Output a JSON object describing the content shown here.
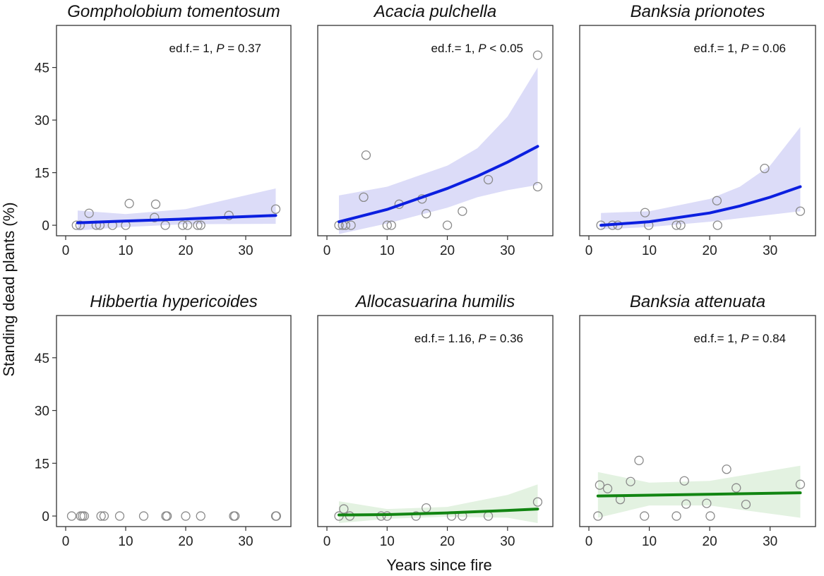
{
  "chart_data": {
    "type": "scatter",
    "ylabel": "Standing dead plants (%)",
    "xlabel": "Years since fire",
    "xlim": [
      0,
      36
    ],
    "ylim": [
      -3,
      57
    ],
    "xticks": [
      0,
      10,
      20,
      30
    ],
    "yticks": [
      0,
      15,
      30,
      45
    ],
    "colors": {
      "blue_fit": "#0b1fe0",
      "blue_ci": "#dcdcf8",
      "green_fit": "#128512",
      "green_ci": "#e3f2e1",
      "point": "#8a8a8a"
    },
    "panels": [
      {
        "title": "Gompholobium tomentosum",
        "stat": {
          "prefix": "ed.f.= 1, ",
          "p": "P",
          "suffix": " = 0.37"
        },
        "fit_color": "blue",
        "points": [
          [
            1.8,
            0
          ],
          [
            2.4,
            0
          ],
          [
            3.9,
            3.4
          ],
          [
            5.1,
            0
          ],
          [
            5.7,
            0
          ],
          [
            7.8,
            0
          ],
          [
            10,
            0
          ],
          [
            10.6,
            6.2
          ],
          [
            14.8,
            2.2
          ],
          [
            15,
            6
          ],
          [
            16.6,
            0
          ],
          [
            19.5,
            0
          ],
          [
            20.3,
            0
          ],
          [
            22,
            0
          ],
          [
            22.5,
            0
          ],
          [
            27.2,
            2.8
          ],
          [
            35,
            4.6
          ]
        ],
        "fit": [
          [
            2,
            0.7
          ],
          [
            10,
            1.2
          ],
          [
            20,
            1.8
          ],
          [
            35,
            2.8
          ]
        ],
        "ci_upper": [
          [
            2,
            4.2
          ],
          [
            10,
            3.2
          ],
          [
            20,
            4.6
          ],
          [
            35,
            10.5
          ]
        ],
        "ci_lower": [
          [
            2,
            -1.5
          ],
          [
            10,
            -0.5
          ],
          [
            20,
            0.3
          ],
          [
            35,
            0.4
          ]
        ]
      },
      {
        "title": "Acacia pulchella",
        "stat": {
          "prefix": "ed.f.= 1, ",
          "p": "P",
          "suffix": " < 0.05"
        },
        "fit_color": "blue",
        "points": [
          [
            2,
            0
          ],
          [
            2.6,
            0
          ],
          [
            3.1,
            0
          ],
          [
            4,
            0
          ],
          [
            6.1,
            8
          ],
          [
            6.5,
            20
          ],
          [
            10,
            0
          ],
          [
            10.7,
            0
          ],
          [
            12,
            6
          ],
          [
            15.8,
            7.5
          ],
          [
            16.5,
            3.3
          ],
          [
            20,
            0
          ],
          [
            22.5,
            4
          ],
          [
            26.8,
            13
          ],
          [
            35,
            11
          ],
          [
            35,
            48.5
          ]
        ],
        "fit": [
          [
            2,
            1
          ],
          [
            10,
            4.5
          ],
          [
            20,
            10.5
          ],
          [
            25,
            14
          ],
          [
            30,
            18
          ],
          [
            35,
            22.5
          ]
        ],
        "ci_upper": [
          [
            2,
            8.5
          ],
          [
            10,
            11
          ],
          [
            20,
            17
          ],
          [
            25,
            22
          ],
          [
            30,
            31
          ],
          [
            35,
            45
          ]
        ],
        "ci_lower": [
          [
            2,
            -2.5
          ],
          [
            10,
            0.5
          ],
          [
            20,
            5
          ],
          [
            25,
            8
          ],
          [
            30,
            10
          ],
          [
            35,
            11.5
          ]
        ]
      },
      {
        "title": "Banksia prionotes",
        "stat": {
          "prefix": "ed.f.= 1, ",
          "p": "P",
          "suffix": " = 0.06"
        },
        "fit_color": "blue",
        "points": [
          [
            2,
            0
          ],
          [
            3.9,
            0
          ],
          [
            4.8,
            0
          ],
          [
            9.3,
            3.6
          ],
          [
            9.9,
            0
          ],
          [
            14.5,
            0
          ],
          [
            15.2,
            0
          ],
          [
            21.2,
            7
          ],
          [
            21.3,
            0
          ],
          [
            29.1,
            16.2
          ],
          [
            35,
            4
          ]
        ],
        "fit": [
          [
            2,
            0
          ],
          [
            10,
            1
          ],
          [
            20,
            3.5
          ],
          [
            25,
            5.5
          ],
          [
            30,
            8
          ],
          [
            35,
            11
          ]
        ],
        "ci_upper": [
          [
            2,
            3.5
          ],
          [
            10,
            4
          ],
          [
            20,
            7.5
          ],
          [
            25,
            11
          ],
          [
            30,
            17
          ],
          [
            35,
            28
          ]
        ],
        "ci_lower": [
          [
            2,
            -1.2
          ],
          [
            10,
            -0.5
          ],
          [
            20,
            1
          ],
          [
            25,
            2
          ],
          [
            30,
            3
          ],
          [
            35,
            4
          ]
        ]
      },
      {
        "title": "Hibbertia hypericoides",
        "stat": null,
        "fit_color": null,
        "points": [
          [
            1,
            0
          ],
          [
            2.5,
            0
          ],
          [
            2.8,
            0
          ],
          [
            3.1,
            0
          ],
          [
            5.9,
            0
          ],
          [
            6.4,
            0
          ],
          [
            9,
            0
          ],
          [
            13,
            0
          ],
          [
            16.7,
            0
          ],
          [
            16.9,
            0
          ],
          [
            20,
            0
          ],
          [
            22.5,
            0
          ],
          [
            28,
            0
          ],
          [
            28.2,
            0
          ],
          [
            35,
            0
          ],
          [
            35.1,
            0
          ]
        ]
      },
      {
        "title": "Allocasuarina humilis",
        "stat": {
          "prefix": "ed.f.= 1.16, ",
          "p": "P",
          "suffix": " = 0.36"
        },
        "fit_color": "green",
        "points": [
          [
            2,
            0
          ],
          [
            2.8,
            2
          ],
          [
            3.8,
            0
          ],
          [
            9,
            0
          ],
          [
            10,
            0
          ],
          [
            14.8,
            0
          ],
          [
            16.5,
            2.3
          ],
          [
            20.7,
            0
          ],
          [
            22.5,
            0
          ],
          [
            26.8,
            0
          ],
          [
            35,
            4
          ]
        ],
        "fit": [
          [
            2,
            0.3
          ],
          [
            10,
            0.4
          ],
          [
            20,
            0.9
          ],
          [
            30,
            1.6
          ],
          [
            35,
            2
          ]
        ],
        "ci_upper": [
          [
            2,
            4.2
          ],
          [
            10,
            2
          ],
          [
            20,
            2.6
          ],
          [
            30,
            6
          ],
          [
            35,
            9
          ]
        ],
        "ci_lower": [
          [
            2,
            -2
          ],
          [
            10,
            -0.8
          ],
          [
            20,
            -0.2
          ],
          [
            30,
            -0.5
          ],
          [
            35,
            -2
          ]
        ]
      },
      {
        "title": "Banksia attenuata",
        "stat": {
          "prefix": "ed.f.= 1, ",
          "p": "P",
          "suffix": " = 0.84"
        },
        "fit_color": "green",
        "points": [
          [
            1.5,
            0
          ],
          [
            1.8,
            8.8
          ],
          [
            3.1,
            7.8
          ],
          [
            5.2,
            4.7
          ],
          [
            6.9,
            9.8
          ],
          [
            8.3,
            15.8
          ],
          [
            9.2,
            0
          ],
          [
            14.5,
            0
          ],
          [
            15.8,
            10
          ],
          [
            16.1,
            3.4
          ],
          [
            19.5,
            3.6
          ],
          [
            20.1,
            0
          ],
          [
            22.8,
            13.3
          ],
          [
            24.4,
            8
          ],
          [
            26,
            3.3
          ],
          [
            35,
            9
          ]
        ],
        "fit": [
          [
            1.5,
            5.7
          ],
          [
            35,
            6.6
          ]
        ],
        "ci_upper": [
          [
            1.5,
            12.5
          ],
          [
            10,
            9.5
          ],
          [
            20,
            10
          ],
          [
            35,
            14.3
          ]
        ],
        "ci_lower": [
          [
            1.5,
            -0.5
          ],
          [
            10,
            3
          ],
          [
            20,
            3
          ],
          [
            35,
            -0.5
          ]
        ]
      }
    ]
  }
}
